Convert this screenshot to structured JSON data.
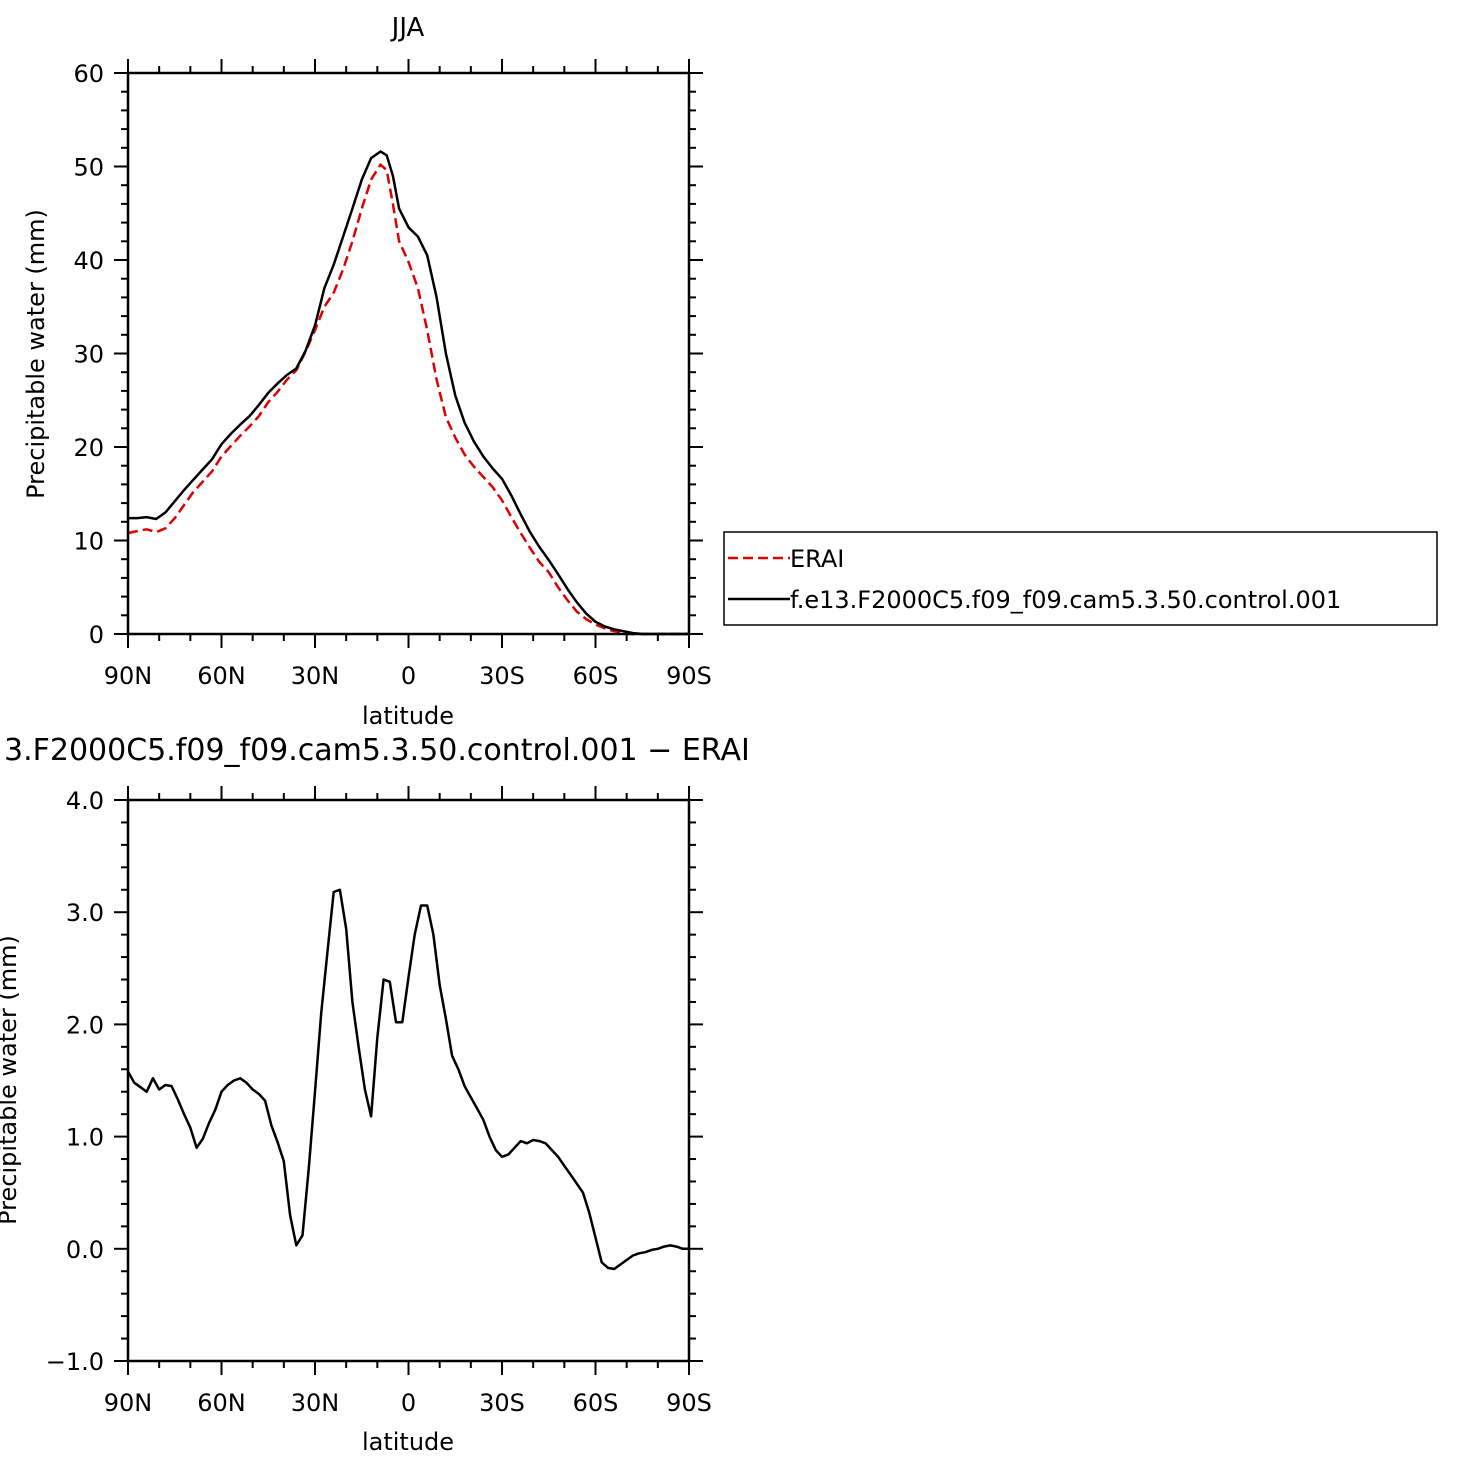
{
  "chart_data": [
    {
      "type": "line",
      "title": "JJA",
      "xlabel": "latitude",
      "ylabel": "Precipitable water (mm)",
      "xlim": [
        90,
        -90
      ],
      "ylim": [
        0,
        60
      ],
      "xticks": [
        90,
        60,
        30,
        0,
        -30,
        -60,
        -90
      ],
      "xtick_labels": [
        "90N",
        "60N",
        "30N",
        "0",
        "30S",
        "60S",
        "90S"
      ],
      "yticks": [
        0,
        10,
        20,
        30,
        40,
        50,
        60
      ],
      "ytick_labels": [
        "0",
        "10",
        "20",
        "30",
        "40",
        "50",
        "60"
      ],
      "legend": {
        "position": "right",
        "entries": [
          "ERAI",
          "f.e13.F2000C5.f09_f09.cam5.3.50.control.001"
        ]
      },
      "series": [
        {
          "name": "ERAI",
          "color": "#e00000",
          "dash": "dashed",
          "x": [
            90,
            87,
            84,
            81,
            78,
            75,
            72,
            69,
            66,
            63,
            60,
            57,
            54,
            51,
            48,
            45,
            42,
            39,
            36,
            33,
            30,
            27,
            24,
            21,
            18,
            15,
            12,
            9,
            7,
            5,
            3,
            0,
            -3,
            -6,
            -9,
            -12,
            -15,
            -18,
            -21,
            -24,
            -27,
            -30,
            -33,
            -36,
            -39,
            -42,
            -45,
            -48,
            -51,
            -54,
            -57,
            -60,
            -63,
            -66,
            -69,
            -72,
            -75,
            -78,
            -81,
            -84,
            -87,
            -90
          ],
          "y": [
            10.8,
            11.0,
            11.2,
            10.9,
            11.3,
            12.4,
            13.8,
            15.2,
            16.3,
            17.4,
            19.0,
            20.1,
            21.2,
            22.2,
            23.3,
            24.8,
            25.9,
            27.2,
            28.2,
            30.2,
            32.5,
            35.0,
            36.5,
            39.0,
            42.0,
            45.5,
            48.6,
            50.2,
            49.6,
            46.0,
            42.0,
            39.8,
            37.0,
            32.5,
            27.2,
            23.2,
            21.0,
            19.2,
            17.9,
            16.8,
            15.7,
            14.3,
            12.5,
            10.8,
            9.2,
            7.7,
            6.6,
            5.0,
            3.6,
            2.4,
            1.6,
            1.0,
            0.6,
            0.3,
            0.1,
            0.0,
            0.0,
            0.0,
            0.0,
            0.0,
            0.0,
            0.0
          ]
        },
        {
          "name": "f.e13.F2000C5.f09_f09.cam5.3.50.control.001",
          "color": "#000000",
          "dash": "solid",
          "x": [
            90,
            87,
            84,
            81,
            78,
            75,
            72,
            69,
            66,
            63,
            60,
            57,
            54,
            51,
            48,
            45,
            42,
            39,
            36,
            33,
            30,
            27,
            24,
            21,
            18,
            15,
            12,
            9,
            7,
            5,
            3,
            0,
            -3,
            -6,
            -9,
            -12,
            -15,
            -18,
            -21,
            -24,
            -27,
            -30,
            -33,
            -36,
            -39,
            -42,
            -45,
            -48,
            -51,
            -54,
            -57,
            -60,
            -63,
            -66,
            -69,
            -72,
            -75,
            -78,
            -81,
            -84,
            -87,
            -90
          ],
          "y": [
            12.4,
            12.4,
            12.5,
            12.3,
            13.0,
            14.2,
            15.4,
            16.5,
            17.6,
            18.7,
            20.3,
            21.4,
            22.4,
            23.3,
            24.5,
            25.8,
            26.8,
            27.7,
            28.4,
            30.3,
            33.0,
            37.0,
            39.5,
            42.5,
            45.5,
            48.6,
            50.9,
            51.6,
            51.2,
            49.0,
            45.5,
            43.5,
            42.5,
            40.5,
            36.0,
            30.0,
            25.5,
            22.6,
            20.6,
            19.0,
            17.7,
            16.6,
            14.8,
            12.8,
            10.9,
            9.3,
            7.9,
            6.4,
            4.8,
            3.4,
            2.2,
            1.3,
            0.8,
            0.5,
            0.3,
            0.1,
            0.0,
            0.0,
            0.0,
            0.0,
            0.0,
            0.0
          ]
        }
      ]
    },
    {
      "type": "line",
      "title": "3.F2000C5.f09_f09.cam5.3.50.control.001 − ERAI",
      "xlabel": "latitude",
      "ylabel": "Precipitable water (mm)",
      "xlim": [
        90,
        -90
      ],
      "ylim": [
        -1.0,
        4.0
      ],
      "xticks": [
        90,
        60,
        30,
        0,
        -30,
        -60,
        -90
      ],
      "xtick_labels": [
        "90N",
        "60N",
        "30N",
        "0",
        "30S",
        "60S",
        "90S"
      ],
      "yticks": [
        -1.0,
        0.0,
        1.0,
        2.0,
        3.0,
        4.0
      ],
      "ytick_labels": [
        "−1.0",
        "0.0",
        "1.0",
        "2.0",
        "3.0",
        "4.0"
      ],
      "series": [
        {
          "color": "#000000",
          "dash": "solid",
          "x": [
            90,
            88,
            86,
            84,
            82,
            80,
            78,
            76,
            74,
            72,
            70,
            68,
            66,
            64,
            62,
            60,
            58,
            56,
            54,
            52,
            50,
            48,
            46,
            44,
            42,
            40,
            38,
            36,
            34,
            32,
            30,
            28,
            26,
            24,
            22,
            20,
            18,
            16,
            14,
            12,
            10,
            8,
            6,
            4,
            2,
            0,
            -2,
            -4,
            -6,
            -8,
            -10,
            -12,
            -14,
            -16,
            -18,
            -20,
            -22,
            -24,
            -26,
            -28,
            -30,
            -32,
            -34,
            -36,
            -38,
            -40,
            -42,
            -44,
            -46,
            -48,
            -50,
            -52,
            -54,
            -56,
            -58,
            -60,
            -62,
            -64,
            -66,
            -68,
            -70,
            -72,
            -74,
            -76,
            -78,
            -80,
            -82,
            -84,
            -86,
            -88,
            -90
          ],
          "y": [
            1.58,
            1.48,
            1.44,
            1.4,
            1.52,
            1.42,
            1.46,
            1.45,
            1.33,
            1.2,
            1.08,
            0.9,
            0.98,
            1.12,
            1.24,
            1.4,
            1.46,
            1.5,
            1.52,
            1.48,
            1.42,
            1.38,
            1.32,
            1.1,
            0.95,
            0.78,
            0.3,
            0.03,
            0.12,
            0.72,
            1.4,
            2.1,
            2.65,
            3.18,
            3.2,
            2.85,
            2.2,
            1.8,
            1.42,
            1.18,
            1.88,
            2.4,
            2.38,
            2.02,
            2.02,
            2.42,
            2.8,
            3.06,
            3.06,
            2.8,
            2.35,
            2.05,
            1.72,
            1.6,
            1.45,
            1.35,
            1.25,
            1.15,
            1.0,
            0.88,
            0.82,
            0.84,
            0.9,
            0.96,
            0.94,
            0.97,
            0.96,
            0.94,
            0.88,
            0.82,
            0.74,
            0.66,
            0.58,
            0.5,
            0.32,
            0.1,
            -0.12,
            -0.17,
            -0.18,
            -0.14,
            -0.1,
            -0.06,
            -0.04,
            -0.03,
            -0.01,
            0.0,
            0.02,
            0.03,
            0.02,
            0.0,
            0.0
          ]
        }
      ]
    }
  ]
}
